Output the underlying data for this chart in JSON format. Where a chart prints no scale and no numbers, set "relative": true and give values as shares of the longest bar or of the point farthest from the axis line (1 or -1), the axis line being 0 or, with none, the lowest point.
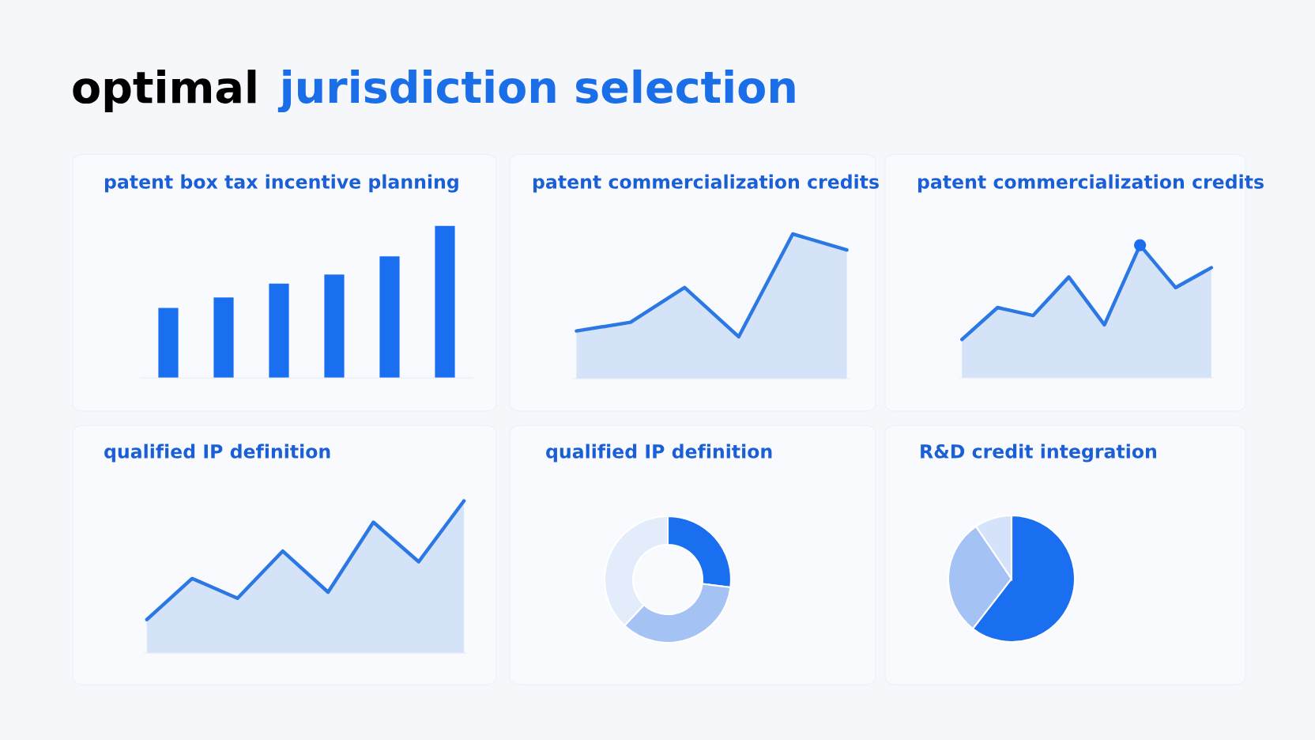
{
  "chart_data": [
    {
      "type": "other",
      "annotations": [
        "optimal",
        "jurisdiction selection"
      ],
      "colors": [
        "#000000",
        "#1a6fe8"
      ]
    },
    {
      "type": "bar",
      "title": "patent box tax incentive planning",
      "relative": true,
      "categories": [
        null,
        null,
        null,
        null,
        null,
        null
      ],
      "values": [
        0.46,
        0.53,
        0.62,
        0.68,
        0.8,
        1.0
      ],
      "color": "#1a6ff0"
    },
    {
      "type": "area",
      "title": "patent commercialization credits",
      "relative": true,
      "categories": [
        null,
        null,
        null,
        null,
        null,
        null
      ],
      "values": [
        0.33,
        0.39,
        0.63,
        0.29,
        1.0,
        0.89
      ],
      "color": "#2b78e4"
    },
    {
      "type": "area",
      "title": "patent commercialization credits",
      "relative": true,
      "categories": [
        null,
        null,
        null,
        null,
        null,
        null,
        null,
        null
      ],
      "series": [
        {
          "type": "area",
          "color": "#2b78e4",
          "values": [
            0.29,
            0.53,
            0.47,
            0.76,
            0.4,
            1.0,
            0.68,
            0.83
          ]
        },
        {
          "type": "line",
          "marker": "circle",
          "color": "#1a6ff0",
          "values": [
            null,
            null,
            null,
            null,
            null,
            1.0,
            null,
            null
          ]
        }
      ]
    },
    {
      "type": "area",
      "title": "qualified IP definition",
      "relative": true,
      "categories": [
        null,
        null,
        null,
        null,
        null,
        null,
        null,
        null
      ],
      "values": [
        0.22,
        0.49,
        0.36,
        0.67,
        0.4,
        0.86,
        0.6,
        1.0
      ],
      "color": "#2b78e4"
    },
    {
      "type": "donut",
      "title": "qualified IP definition",
      "categories": [
        null,
        null,
        null
      ],
      "values": [
        27,
        35,
        38
      ],
      "colors": [
        "#1a6ff0",
        "#a4c2f4",
        "#e3ecfb"
      ]
    },
    {
      "type": "pie",
      "title": "R&D credit integration",
      "categories": [
        null,
        null,
        null
      ],
      "values": [
        60.5,
        30,
        9.5
      ],
      "colors": [
        "#1a6ff0",
        "#a4c2f4",
        "#d5e3fa"
      ]
    }
  ]
}
